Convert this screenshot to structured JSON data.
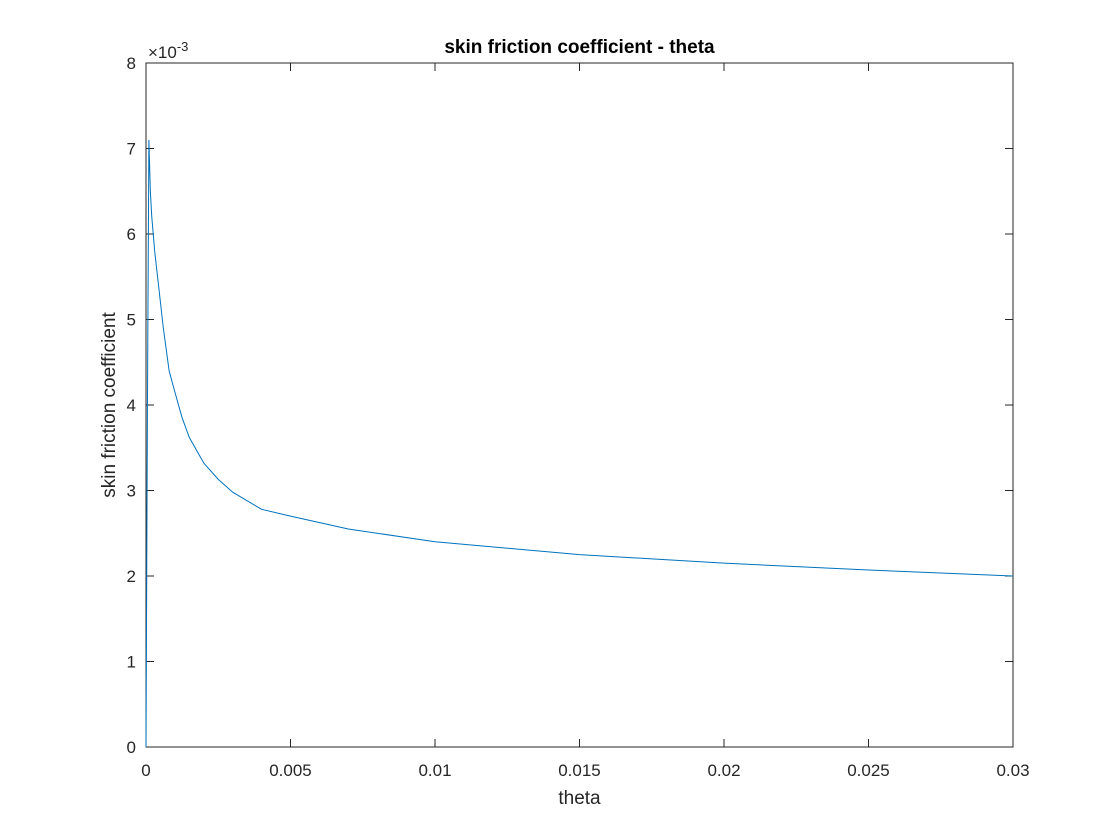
{
  "chart_data": {
    "type": "line",
    "title": "skin friction coefficient  - theta",
    "xlabel": "theta",
    "ylabel": "skin friction coefficient",
    "xlim": [
      0,
      0.03
    ],
    "ylim": [
      0,
      8
    ],
    "y_scale_multiplier": "×10",
    "y_scale_exponent": "-3",
    "x_ticks": [
      0,
      0.005,
      0.01,
      0.015,
      0.02,
      0.025,
      0.03
    ],
    "x_tick_labels": [
      "0",
      "0.005",
      "0.01",
      "0.015",
      "0.02",
      "0.025",
      "0.03"
    ],
    "y_ticks": [
      0,
      1,
      2,
      3,
      4,
      5,
      6,
      7,
      8
    ],
    "y_tick_labels": [
      "0",
      "1",
      "2",
      "3",
      "4",
      "5",
      "6",
      "7",
      "8"
    ],
    "grid": false,
    "box": true,
    "series": [
      {
        "color": "#0072BD",
        "x": [
          0,
          5e-05,
          0.0001,
          0.00015,
          0.0002,
          0.0003,
          0.0004,
          0.0006,
          0.0008,
          0.001,
          0.00125,
          0.0015,
          0.002,
          0.0025,
          0.003,
          0.004,
          0.005,
          0.007,
          0.01,
          0.015,
          0.02,
          0.025,
          0.03
        ],
        "y": [
          0,
          4.0,
          7.1,
          6.5,
          6.2,
          5.8,
          5.5,
          4.9,
          4.4,
          4.15,
          3.85,
          3.62,
          3.32,
          3.13,
          2.98,
          2.78,
          2.7,
          2.55,
          2.4,
          2.25,
          2.15,
          2.07,
          2.0
        ]
      }
    ]
  }
}
